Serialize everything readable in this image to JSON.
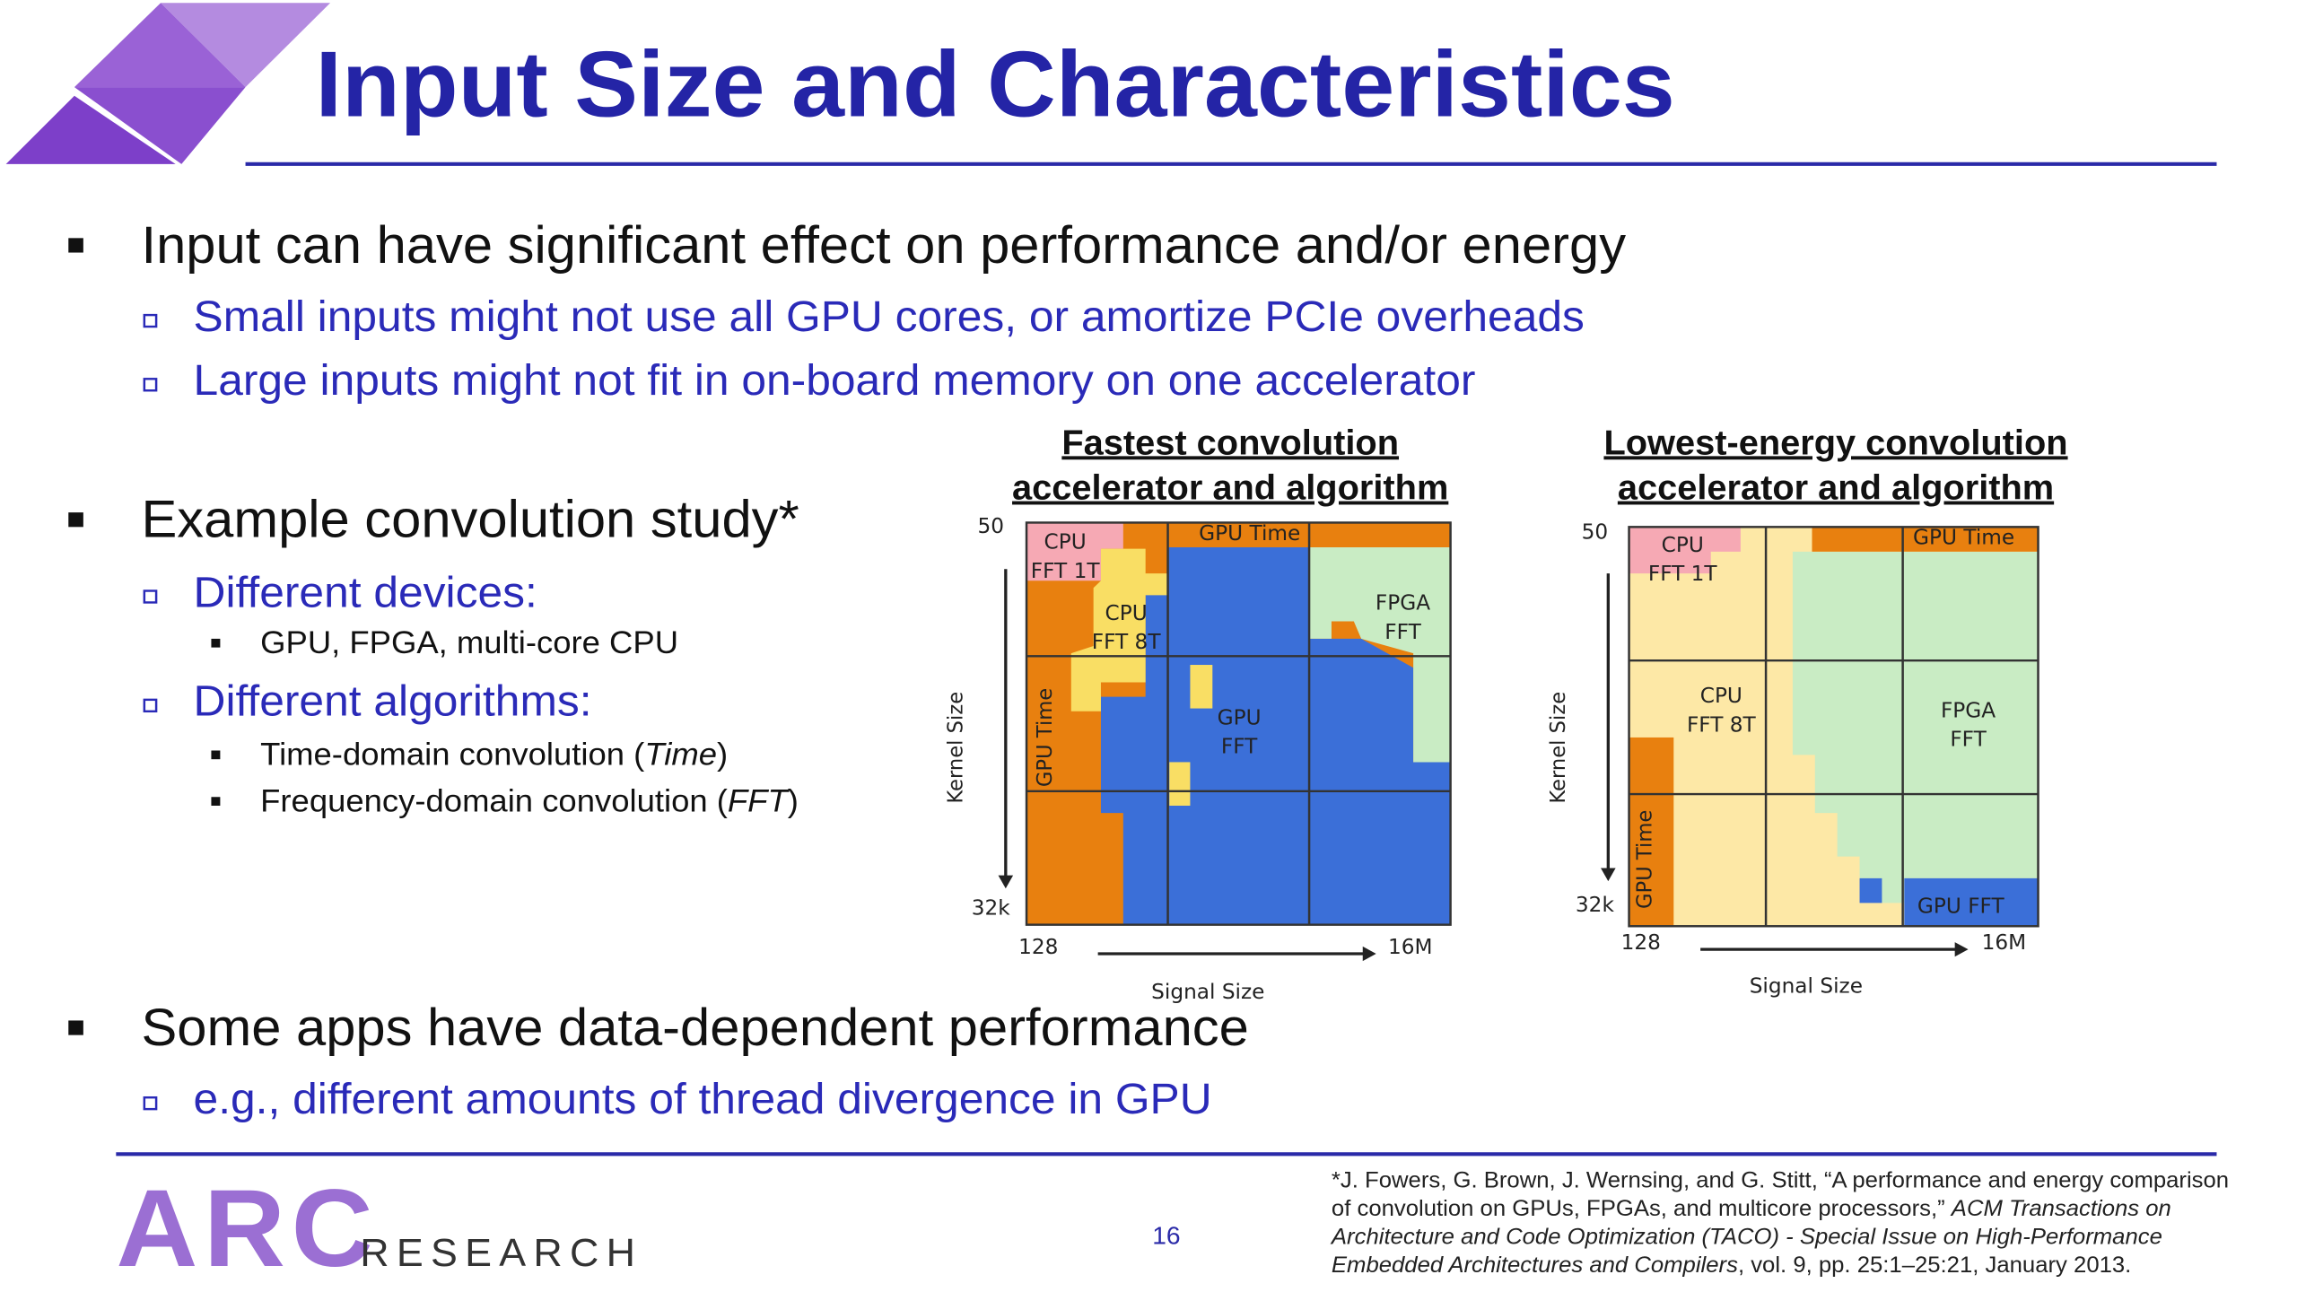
{
  "title": "Input Size and Characteristics",
  "bullets": [
    {
      "level": 1,
      "parts": [
        "Input can have significant effect on performance and/or energy"
      ]
    },
    {
      "level": 2,
      "parts": [
        "Small inputs might not use all GPU cores, or amortize PCIe overheads"
      ]
    },
    {
      "level": 2,
      "parts": [
        "Large inputs might not fit in on-board memory on one accelerator"
      ]
    },
    {
      "level": 1,
      "parts": [
        "Example convolution study*"
      ]
    },
    {
      "level": 2,
      "parts": [
        "Different devices:"
      ]
    },
    {
      "level": 3,
      "parts": [
        "GPU, FPGA, multi-core CPU"
      ]
    },
    {
      "level": 2,
      "parts": [
        "Different algorithms:"
      ]
    },
    {
      "level": 3,
      "parts": [
        "Time-domain convolution (",
        "Time",
        ")"
      ]
    },
    {
      "level": 3,
      "parts": [
        "Frequency-domain convolution (",
        "FFT",
        ")"
      ]
    },
    {
      "level": 1,
      "parts": [
        "Some apps have data-dependent performance"
      ]
    },
    {
      "level": 2,
      "parts": [
        "e.g., different amounts of thread divergence in GPU"
      ]
    }
  ],
  "figures": [
    {
      "title": [
        "Fastest convolution",
        "accelerator and algorithm"
      ],
      "labels": [
        [
          "CPU",
          "FFT 1T"
        ],
        [
          "GPU Time"
        ],
        [
          "CPU",
          "FFT 8T"
        ],
        [
          "FPGA",
          "FFT"
        ],
        [
          "GPU",
          "FFT"
        ],
        [
          "GPU Time"
        ]
      ],
      "y_top": "50",
      "y_bottom": "32k",
      "x_left": "128",
      "x_right": "16M",
      "x_axis": "Signal Size",
      "y_axis": "Kernel Size"
    },
    {
      "title": [
        "Lowest-energy convolution",
        "accelerator and algorithm"
      ],
      "labels": [
        [
          "CPU",
          "FFT 1T"
        ],
        [
          "GPU Time"
        ],
        [
          "CPU",
          "FFT 8T"
        ],
        [
          "FPGA",
          "FFT"
        ],
        [
          "GPU Time"
        ],
        [
          "GPU FFT"
        ]
      ],
      "y_top": "50",
      "y_bottom": "32k",
      "x_left": "128",
      "x_right": "16M",
      "x_axis": "Signal Size",
      "y_axis": "Kernel Size"
    }
  ],
  "footer": {
    "logo": "ARC",
    "logo_sub": "RESEARCH",
    "page": "16",
    "citation": [
      [
        "*J. Fowers, G. Brown, J. Wernsing, and G. Stitt, “A performance and energy comparison"
      ],
      [
        "of convolution on GPUs, FPGAs, and multicore processors,” ",
        "ACM Transactions on"
      ],
      [
        "",
        "Architecture and Code Optimization (TACO) - Special Issue on High-Performance"
      ],
      [
        "",
        "Embedded Architectures and Compilers",
        ", vol. 9, pp. 25:1–25:21, January 2013."
      ]
    ]
  }
}
